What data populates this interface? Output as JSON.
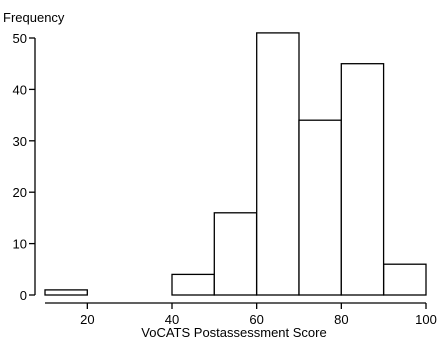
{
  "chart_data": {
    "type": "bar",
    "title": "",
    "xlabel": "VoCATS Postassessment Score",
    "ylabel": "Frequency",
    "bins": [
      {
        "start": 10,
        "end": 20,
        "value": 1
      },
      {
        "start": 20,
        "end": 30,
        "value": 0
      },
      {
        "start": 30,
        "end": 40,
        "value": 0
      },
      {
        "start": 40,
        "end": 50,
        "value": 4
      },
      {
        "start": 50,
        "end": 60,
        "value": 16
      },
      {
        "start": 60,
        "end": 70,
        "value": 51
      },
      {
        "start": 70,
        "end": 80,
        "value": 34
      },
      {
        "start": 80,
        "end": 90,
        "value": 45
      },
      {
        "start": 90,
        "end": 100,
        "value": 6
      }
    ],
    "xlim": [
      10,
      100
    ],
    "ylim": [
      0,
      52
    ],
    "x_ticks": [
      20,
      40,
      60,
      80,
      100
    ],
    "y_ticks": [
      0,
      10,
      20,
      30,
      40,
      50
    ],
    "grid": false,
    "legend": "none"
  }
}
